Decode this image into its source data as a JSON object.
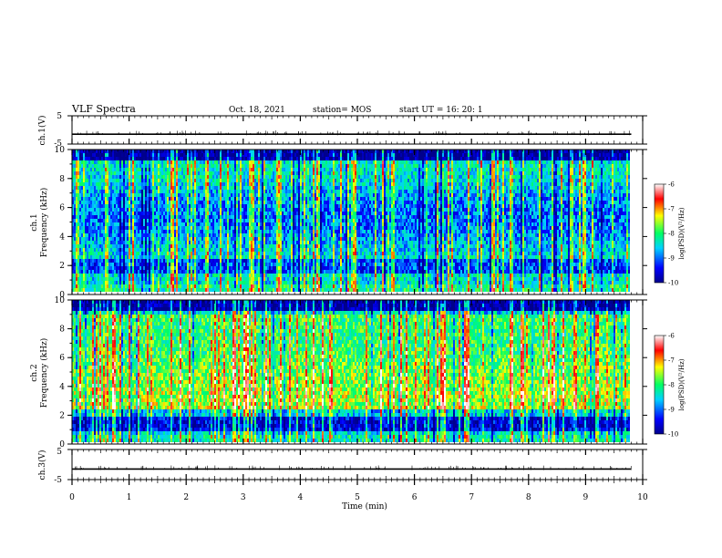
{
  "header": {
    "title": "VLF Spectra",
    "date": "Oct. 18, 2021",
    "station": "station= MOS",
    "start_ut": "start  UT =   16: 20: 1"
  },
  "chart_data": [
    {
      "type": "line",
      "name": "ch.1 voltage",
      "ylabel": "ch.1(V)",
      "ylim": [
        -5,
        5
      ],
      "yticks": [
        "5",
        "-5"
      ],
      "xlim": [
        0,
        10
      ],
      "level": -1.5,
      "trace_end_min": 9.8
    },
    {
      "type": "heatmap",
      "name": "ch.1 spectrogram",
      "ylabel": "ch.1\nFrequency (kHz)",
      "ylim": [
        0,
        10
      ],
      "yticks": [
        "0",
        "2",
        "4",
        "6",
        "8",
        "10"
      ],
      "xlim": [
        0,
        10
      ],
      "data_end_min": 9.8,
      "colorbar": {
        "label": "log(PSD)(V²/Hz)",
        "range": [
          -10,
          -6
        ],
        "ticks": [
          "-6",
          "-7",
          "-8",
          "-9",
          "-10"
        ]
      }
    },
    {
      "type": "heatmap",
      "name": "ch.2 spectrogram",
      "ylabel": "ch.2\nFrequency (kHz)",
      "ylim": [
        0,
        10
      ],
      "yticks": [
        "0",
        "2",
        "4",
        "6",
        "8",
        "10"
      ],
      "xlim": [
        0,
        10
      ],
      "data_end_min": 9.8,
      "colorbar": {
        "label": "log(PSD)(V²/Hz)",
        "range": [
          -10,
          -6
        ],
        "ticks": [
          "-6",
          "-7",
          "-8",
          "-9",
          "-10"
        ]
      }
    },
    {
      "type": "line",
      "name": "ch.3 voltage",
      "ylabel": "ch.3(V)",
      "ylim": [
        -5,
        5
      ],
      "yticks": [
        "5",
        "-5"
      ],
      "xlim": [
        0,
        10
      ],
      "level": -1.5,
      "trace_end_min": 9.8
    }
  ],
  "x_axis": {
    "label": "Time  (min)",
    "ticks": [
      "0",
      "1",
      "2",
      "3",
      "4",
      "5",
      "6",
      "7",
      "8",
      "9",
      "10"
    ]
  },
  "colors": {
    "colormap": [
      "#00008c",
      "#0000ff",
      "#00d2ff",
      "#00ff64",
      "#ffff00",
      "#ff0000",
      "#ffffff"
    ],
    "background": "#ffffff",
    "axes": "#000000"
  }
}
